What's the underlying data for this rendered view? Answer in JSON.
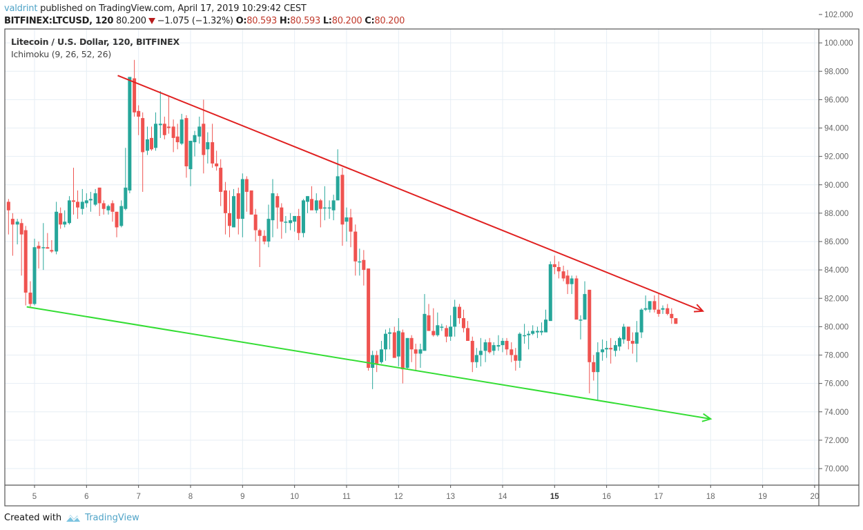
{
  "header": {
    "author": "valdrint",
    "published_text": " published on TradingView.com, April 17, 2019 10:29:42 CEST",
    "symbol": "BITFINEX:LTCUSD, 120",
    "last_price": "80.200",
    "change": "−1.075 (−1.32%)",
    "open_label": "O:",
    "open": "80.593",
    "high_label": "H:",
    "high": "80.593",
    "low_label": "L:",
    "low": "80.200",
    "close_label": "C:",
    "close": "80.200",
    "direction_icon": "down-triangle-icon"
  },
  "legend": {
    "title": "Litecoin / U.S. Dollar, 120, BITFINEX",
    "indicator": "Ichimoku (9, 26, 52, 26)"
  },
  "footer": {
    "created_with": "Created with",
    "brand": "TradingView",
    "logo_icon": "tradingview-cloud-icon"
  },
  "colors": {
    "up": "#26a69a",
    "down": "#ef5350",
    "resistance": "#e02020",
    "support": "#33dd33",
    "grid": "#e6eef4",
    "axis": "#555555",
    "link": "#4fa3c7"
  },
  "chart_data": {
    "type": "candlestick",
    "title": "Litecoin / U.S. Dollar, 120, BITFINEX",
    "xlabel": "",
    "ylabel": "",
    "x_ticks": [
      "5",
      "6",
      "7",
      "8",
      "9",
      "10",
      "11",
      "12",
      "13",
      "14",
      "15",
      "16",
      "17",
      "18",
      "19",
      "20"
    ],
    "y_ticks": [
      "102.000",
      "100.000",
      "98.000",
      "96.000",
      "94.000",
      "92.000",
      "90.000",
      "88.000",
      "86.000",
      "84.000",
      "82.000",
      "80.000",
      "78.000",
      "76.000",
      "74.000",
      "72.000",
      "70.000"
    ],
    "ylim": [
      69.2,
      102.4
    ],
    "xlim": [
      4.45,
      20.0
    ],
    "grid": true,
    "candle_interval_hours": 2,
    "ohlc": [
      [
        4.5,
        88.8,
        89.0,
        86.5,
        88.2
      ],
      [
        4.58,
        87.6,
        88.0,
        85.0,
        87.2
      ],
      [
        4.67,
        87.2,
        87.6,
        85.8,
        87.4
      ],
      [
        4.75,
        87.3,
        87.6,
        83.6,
        86.5
      ],
      [
        4.83,
        86.8,
        87.1,
        81.5,
        82.4
      ],
      [
        4.92,
        82.4,
        83.2,
        81.4,
        81.6
      ],
      [
        5.0,
        81.6,
        86.2,
        81.5,
        85.6
      ],
      [
        5.08,
        85.7,
        86.0,
        84.1,
        85.5
      ],
      [
        5.17,
        85.6,
        87.3,
        84.0,
        85.6
      ],
      [
        5.25,
        85.6,
        86.6,
        85.5,
        85.5
      ],
      [
        5.33,
        85.4,
        86.1,
        85.2,
        85.3
      ],
      [
        5.42,
        85.3,
        88.8,
        85.1,
        88.1
      ],
      [
        5.5,
        88.0,
        88.4,
        86.9,
        87.2
      ],
      [
        5.58,
        87.2,
        88.2,
        87.0,
        87.4
      ],
      [
        5.67,
        87.3,
        89.2,
        87.2,
        88.9
      ],
      [
        5.75,
        88.9,
        91.2,
        87.9,
        88.8
      ],
      [
        5.83,
        88.8,
        89.6,
        87.6,
        88.4
      ],
      [
        5.92,
        88.3,
        89.7,
        87.9,
        88.8
      ],
      [
        6.0,
        88.7,
        89.4,
        88.4,
        88.9
      ],
      [
        6.08,
        88.9,
        89.5,
        88.1,
        89.0
      ],
      [
        6.17,
        88.6,
        89.7,
        88.5,
        89.4
      ],
      [
        6.25,
        89.8,
        89.8,
        87.8,
        88.7
      ],
      [
        6.33,
        88.7,
        88.9,
        87.9,
        88.3
      ],
      [
        6.42,
        88.2,
        88.6,
        87.9,
        88.5
      ],
      [
        6.5,
        88.7,
        88.9,
        87.4,
        88.1
      ],
      [
        6.58,
        88.1,
        88.1,
        86.3,
        87.0
      ],
      [
        6.67,
        87.1,
        88.9,
        87.0,
        88.5
      ],
      [
        6.75,
        88.3,
        92.6,
        88.2,
        89.8
      ],
      [
        6.83,
        89.6,
        94.8,
        89.4,
        97.6
      ],
      [
        6.92,
        97.5,
        98.8,
        94.8,
        95.1
      ],
      [
        7.0,
        95.2,
        95.6,
        93.5,
        94.8
      ],
      [
        7.08,
        94.7,
        95.1,
        89.5,
        92.3
      ],
      [
        7.17,
        92.4,
        94.1,
        92.1,
        93.2
      ],
      [
        7.25,
        93.3,
        94.1,
        92.4,
        92.5
      ],
      [
        7.33,
        92.6,
        95.1,
        92.4,
        94.3
      ],
      [
        7.42,
        94.2,
        96.6,
        93.3,
        94.3
      ],
      [
        7.5,
        94.3,
        94.8,
        93.2,
        93.5
      ],
      [
        7.58,
        94.1,
        96.2,
        93.6,
        94.0
      ],
      [
        7.67,
        94.1,
        94.6,
        92.3,
        93.3
      ],
      [
        7.75,
        93.4,
        94.3,
        92.5,
        93.0
      ],
      [
        7.83,
        92.9,
        95.0,
        92.8,
        94.6
      ],
      [
        7.92,
        94.7,
        94.9,
        90.5,
        91.3
      ],
      [
        8.0,
        91.1,
        93.1,
        89.9,
        93.1
      ],
      [
        8.08,
        93.0,
        93.8,
        92.0,
        93.5
      ],
      [
        8.17,
        93.4,
        94.8,
        92.9,
        94.1
      ],
      [
        8.25,
        94.3,
        96.0,
        90.8,
        92.1
      ],
      [
        8.33,
        92.5,
        93.7,
        91.5,
        93.0
      ],
      [
        8.42,
        93.0,
        94.3,
        91.2,
        91.5
      ],
      [
        8.5,
        91.5,
        92.4,
        91.0,
        91.3
      ],
      [
        8.58,
        91.2,
        91.8,
        88.5,
        89.5
      ],
      [
        8.67,
        89.6,
        90.2,
        86.5,
        88.0
      ],
      [
        8.75,
        88.0,
        89.6,
        86.3,
        87.1
      ],
      [
        8.83,
        87.0,
        89.7,
        87.2,
        89.2
      ],
      [
        8.92,
        89.4,
        89.8,
        86.5,
        87.6
      ],
      [
        9.0,
        87.6,
        90.8,
        86.3,
        90.4
      ],
      [
        9.08,
        90.4,
        90.6,
        88.1,
        89.5
      ],
      [
        9.17,
        89.6,
        89.6,
        87.9,
        87.9
      ],
      [
        9.25,
        87.9,
        88.3,
        86.0,
        86.8
      ],
      [
        9.33,
        86.8,
        86.9,
        84.2,
        86.4
      ],
      [
        9.42,
        86.4,
        86.8,
        85.8,
        86.0
      ],
      [
        9.5,
        86.0,
        88.6,
        85.6,
        87.6
      ],
      [
        9.58,
        87.5,
        90.4,
        86.3,
        89.4
      ],
      [
        9.67,
        89.2,
        89.4,
        86.9,
        88.4
      ],
      [
        9.75,
        88.4,
        88.7,
        86.2,
        87.4
      ],
      [
        9.83,
        87.4,
        87.8,
        86.6,
        87.4
      ],
      [
        9.92,
        87.3,
        88.0,
        86.8,
        87.5
      ],
      [
        10.0,
        87.4,
        87.8,
        86.7,
        87.8
      ],
      [
        10.08,
        87.8,
        88.3,
        86.1,
        86.6
      ],
      [
        10.17,
        86.6,
        89.0,
        86.3,
        88.9
      ],
      [
        10.25,
        88.8,
        89.2,
        88.0,
        89.2
      ],
      [
        10.33,
        89.0,
        89.9,
        88.5,
        88.2
      ],
      [
        10.42,
        88.2,
        89.4,
        88.0,
        88.9
      ],
      [
        10.5,
        88.9,
        89.0,
        87.0,
        88.3
      ],
      [
        10.58,
        88.4,
        89.9,
        87.5,
        88.4
      ],
      [
        10.67,
        88.4,
        88.9,
        87.6,
        88.4
      ],
      [
        10.75,
        88.2,
        89.3,
        87.5,
        88.9
      ],
      [
        10.83,
        88.9,
        92.5,
        89.0,
        90.6
      ],
      [
        10.92,
        90.7,
        91.2,
        85.7,
        87.2
      ],
      [
        11.0,
        87.4,
        88.4,
        86.0,
        87.7
      ],
      [
        11.08,
        87.7,
        88.3,
        85.6,
        86.7
      ],
      [
        11.17,
        86.7,
        87.2,
        83.6,
        84.6
      ],
      [
        11.25,
        84.6,
        85.5,
        83.6,
        84.6
      ],
      [
        11.33,
        84.7,
        85.4,
        82.9,
        84.0
      ],
      [
        11.42,
        84.1,
        84.1,
        76.9,
        77.1
      ],
      [
        11.5,
        77.1,
        78.3,
        75.6,
        78.0
      ],
      [
        11.58,
        78.0,
        78.3,
        76.8,
        77.4
      ],
      [
        11.67,
        77.5,
        79.0,
        77.4,
        78.4
      ],
      [
        11.75,
        78.4,
        79.8,
        77.6,
        79.5
      ],
      [
        11.83,
        79.5,
        79.9,
        78.4,
        79.6
      ],
      [
        11.92,
        79.6,
        80.0,
        78.4,
        77.8
      ],
      [
        12.0,
        77.9,
        80.6,
        77.2,
        79.7
      ],
      [
        12.08,
        79.6,
        79.8,
        76.0,
        77.0
      ],
      [
        12.17,
        77.1,
        79.2,
        77.0,
        79.2
      ],
      [
        12.25,
        79.2,
        79.4,
        77.5,
        78.4
      ],
      [
        12.33,
        78.4,
        78.8,
        76.9,
        78.1
      ],
      [
        12.42,
        78.1,
        78.8,
        77.1,
        78.4
      ],
      [
        12.5,
        78.3,
        82.3,
        78.7,
        80.9
      ],
      [
        12.58,
        80.8,
        81.6,
        79.7,
        79.7
      ],
      [
        12.67,
        79.7,
        81.3,
        79.3,
        79.4
      ],
      [
        12.75,
        79.4,
        81.0,
        79.3,
        80.1
      ],
      [
        12.83,
        80.0,
        80.2,
        79.7,
        80.0
      ],
      [
        12.92,
        79.9,
        80.1,
        78.9,
        79.3
      ],
      [
        13.0,
        79.3,
        80.8,
        79.0,
        80.0
      ],
      [
        13.08,
        80.0,
        81.9,
        79.3,
        81.4
      ],
      [
        13.17,
        81.4,
        81.6,
        80.2,
        80.6
      ],
      [
        13.25,
        80.6,
        81.2,
        79.6,
        79.9
      ],
      [
        13.33,
        79.9,
        80.4,
        79.0,
        79.0
      ],
      [
        13.42,
        79.0,
        79.3,
        76.8,
        77.5
      ],
      [
        13.5,
        77.5,
        78.5,
        77.1,
        78.0
      ],
      [
        13.58,
        78.0,
        79.2,
        77.2,
        78.3
      ],
      [
        13.67,
        78.3,
        79.1,
        77.5,
        78.9
      ],
      [
        13.75,
        78.9,
        79.2,
        78.1,
        78.2
      ],
      [
        13.83,
        78.3,
        78.9,
        78.0,
        78.7
      ],
      [
        13.92,
        78.6,
        79.4,
        78.3,
        78.7
      ],
      [
        14.0,
        78.7,
        79.2,
        78.2,
        79.0
      ],
      [
        14.08,
        79.0,
        79.2,
        78.0,
        78.4
      ],
      [
        14.17,
        78.4,
        78.9,
        77.5,
        78.0
      ],
      [
        14.25,
        78.0,
        78.5,
        76.9,
        77.6
      ],
      [
        14.33,
        77.6,
        79.6,
        77.1,
        79.5
      ],
      [
        14.42,
        79.4,
        80.2,
        78.8,
        79.4
      ],
      [
        14.5,
        79.4,
        79.7,
        78.4,
        79.5
      ],
      [
        14.58,
        79.5,
        80.1,
        79.4,
        79.7
      ],
      [
        14.67,
        79.6,
        80.0,
        79.2,
        79.7
      ],
      [
        14.75,
        79.6,
        80.3,
        79.4,
        79.7
      ],
      [
        14.83,
        79.6,
        81.2,
        79.8,
        80.5
      ],
      [
        14.92,
        80.4,
        84.6,
        80.5,
        84.4
      ],
      [
        15.0,
        84.4,
        85.0,
        83.7,
        84.2
      ],
      [
        15.08,
        84.2,
        84.6,
        83.4,
        83.9
      ],
      [
        15.17,
        83.9,
        84.3,
        83.2,
        83.4
      ],
      [
        15.25,
        83.6,
        84.0,
        82.3,
        83.0
      ],
      [
        15.33,
        83.0,
        83.6,
        82.3,
        83.4
      ],
      [
        15.42,
        83.4,
        83.6,
        80.7,
        80.5
      ],
      [
        15.5,
        80.5,
        80.8,
        79.1,
        80.5
      ],
      [
        15.58,
        80.5,
        83.2,
        80.5,
        82.3
      ],
      [
        15.67,
        82.6,
        82.6,
        75.3,
        77.5
      ],
      [
        15.75,
        77.5,
        78.0,
        76.2,
        76.8
      ],
      [
        15.83,
        76.8,
        78.9,
        74.8,
        78.2
      ],
      [
        15.92,
        78.2,
        79.1,
        77.6,
        78.4
      ],
      [
        16.0,
        78.4,
        79.0,
        77.8,
        78.5
      ],
      [
        16.08,
        78.5,
        79.2,
        77.4,
        78.4
      ],
      [
        16.17,
        78.3,
        79.0,
        77.9,
        78.7
      ],
      [
        16.25,
        78.6,
        79.3,
        78.3,
        79.2
      ],
      [
        16.33,
        79.1,
        80.2,
        78.8,
        80.0
      ],
      [
        16.42,
        80.0,
        80.0,
        78.4,
        79.0
      ],
      [
        16.5,
        79.0,
        79.6,
        78.1,
        78.8
      ],
      [
        16.58,
        78.8,
        80.4,
        77.5,
        79.6
      ],
      [
        16.67,
        79.6,
        81.3,
        79.2,
        81.2
      ],
      [
        16.75,
        81.2,
        82.2,
        81.1,
        81.3
      ],
      [
        16.83,
        81.2,
        81.8,
        81.0,
        81.8
      ],
      [
        16.92,
        81.8,
        82.2,
        81.0,
        81.2
      ],
      [
        17.0,
        81.2,
        82.4,
        80.7,
        80.9
      ],
      [
        17.08,
        81.2,
        81.5,
        80.9,
        81.3
      ],
      [
        17.17,
        81.3,
        81.6,
        80.8,
        80.9
      ],
      [
        17.25,
        80.9,
        81.3,
        80.2,
        80.6
      ],
      [
        17.33,
        80.6,
        80.6,
        80.2,
        80.2
      ]
    ],
    "annotations": [
      {
        "type": "trendline",
        "label": "resistance",
        "color": "#e02020",
        "points": [
          [
            6.6,
            97.7
          ],
          [
            17.85,
            81.1
          ]
        ],
        "arrow_end": true
      },
      {
        "type": "trendline",
        "label": "support",
        "color": "#33dd33",
        "points": [
          [
            4.85,
            81.4
          ],
          [
            18.0,
            73.5
          ]
        ],
        "arrow_end": true
      }
    ]
  }
}
